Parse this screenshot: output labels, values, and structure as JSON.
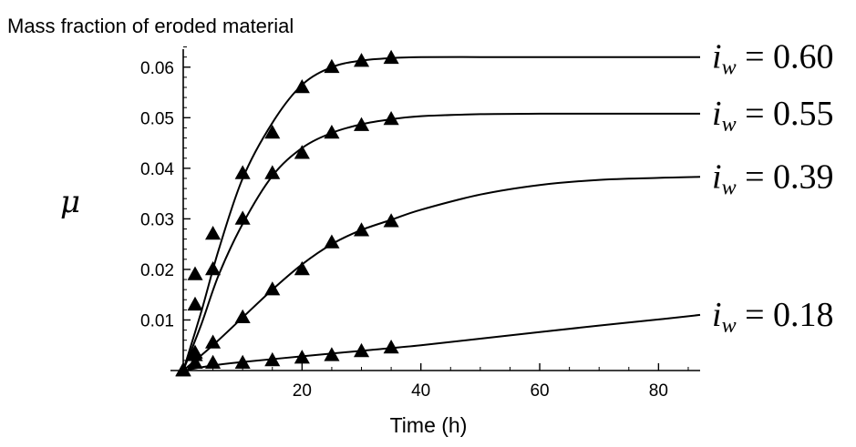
{
  "chart_data": {
    "type": "line",
    "title": "Mass fraction of eroded material",
    "xlabel": "Time (h)",
    "ylabel": "μ",
    "xlim": [
      0,
      87
    ],
    "ylim": [
      0,
      0.065
    ],
    "x_ticks": [
      20,
      40,
      60,
      80
    ],
    "y_ticks": [
      0.01,
      0.02,
      0.03,
      0.04,
      0.05,
      0.06
    ],
    "x_tick_labels": [
      "20",
      "40",
      "60",
      "80"
    ],
    "y_tick_labels": [
      "0.01",
      "0.02",
      "0.03",
      "0.04",
      "0.05",
      "0.06"
    ],
    "grid": false,
    "series": [
      {
        "label_symbol": "i",
        "label_subscript": "w",
        "label_value": "= 0.60",
        "marker": "triangle",
        "points": [
          [
            0,
            0
          ],
          [
            2,
            0.019
          ],
          [
            2,
            0.013
          ],
          [
            5,
            0.027
          ],
          [
            10,
            0.039
          ],
          [
            15,
            0.047
          ],
          [
            20,
            0.056
          ],
          [
            25,
            0.06
          ],
          [
            30,
            0.0612
          ],
          [
            35,
            0.0618
          ]
        ],
        "curve": [
          [
            0,
            0
          ],
          [
            3,
            0.0115
          ],
          [
            6,
            0.024
          ],
          [
            10,
            0.038
          ],
          [
            15,
            0.049
          ],
          [
            20,
            0.0565
          ],
          [
            25,
            0.06
          ],
          [
            30,
            0.0613
          ],
          [
            35,
            0.0618
          ],
          [
            40,
            0.062
          ],
          [
            50,
            0.062
          ],
          [
            60,
            0.062
          ],
          [
            70,
            0.062
          ],
          [
            80,
            0.062
          ],
          [
            87,
            0.062
          ]
        ]
      },
      {
        "label_symbol": "i",
        "label_subscript": "w",
        "label_value": "= 0.55",
        "marker": "triangle",
        "points": [
          [
            0,
            0
          ],
          [
            2,
            0.0035
          ],
          [
            5,
            0.02
          ],
          [
            10,
            0.03
          ],
          [
            15,
            0.039
          ],
          [
            20,
            0.043
          ],
          [
            25,
            0.047
          ],
          [
            30,
            0.0485
          ],
          [
            35,
            0.0497
          ]
        ],
        "curve": [
          [
            0,
            0
          ],
          [
            3,
            0.009
          ],
          [
            6,
            0.019
          ],
          [
            10,
            0.029
          ],
          [
            15,
            0.0385
          ],
          [
            20,
            0.044
          ],
          [
            25,
            0.047
          ],
          [
            30,
            0.0487
          ],
          [
            35,
            0.0497
          ],
          [
            40,
            0.0503
          ],
          [
            50,
            0.0507
          ],
          [
            60,
            0.0508
          ],
          [
            70,
            0.0508
          ],
          [
            80,
            0.0508
          ],
          [
            87,
            0.0508
          ]
        ]
      },
      {
        "label_symbol": "i",
        "label_subscript": "w",
        "label_value": "= 0.39",
        "marker": "triangle",
        "points": [
          [
            0,
            0
          ],
          [
            2,
            0.003
          ],
          [
            5,
            0.0055
          ],
          [
            10,
            0.0105
          ],
          [
            15,
            0.016
          ],
          [
            20,
            0.02
          ],
          [
            25,
            0.0253
          ],
          [
            30,
            0.0277
          ],
          [
            35,
            0.0295
          ]
        ],
        "curve": [
          [
            0,
            0
          ],
          [
            5,
            0.005
          ],
          [
            10,
            0.0105
          ],
          [
            15,
            0.016
          ],
          [
            20,
            0.021
          ],
          [
            25,
            0.025
          ],
          [
            30,
            0.0278
          ],
          [
            35,
            0.0298
          ],
          [
            40,
            0.0318
          ],
          [
            50,
            0.0348
          ],
          [
            60,
            0.0367
          ],
          [
            70,
            0.0377
          ],
          [
            80,
            0.0381
          ],
          [
            87,
            0.0383
          ]
        ]
      },
      {
        "label_symbol": "i",
        "label_subscript": "w",
        "label_value": "= 0.18",
        "marker": "triangle",
        "points": [
          [
            0,
            0
          ],
          [
            2,
            0.0015
          ],
          [
            5,
            0.0015
          ],
          [
            10,
            0.0015
          ],
          [
            15,
            0.002
          ],
          [
            20,
            0.0025
          ],
          [
            25,
            0.003
          ],
          [
            30,
            0.0038
          ],
          [
            35,
            0.0045
          ]
        ],
        "curve": [
          [
            0,
            0
          ],
          [
            5,
            0.001
          ],
          [
            10,
            0.0017
          ],
          [
            20,
            0.0028
          ],
          [
            30,
            0.0039
          ],
          [
            40,
            0.005
          ],
          [
            50,
            0.0063
          ],
          [
            60,
            0.0076
          ],
          [
            70,
            0.0089
          ],
          [
            80,
            0.0101
          ],
          [
            87,
            0.011
          ]
        ]
      }
    ]
  }
}
